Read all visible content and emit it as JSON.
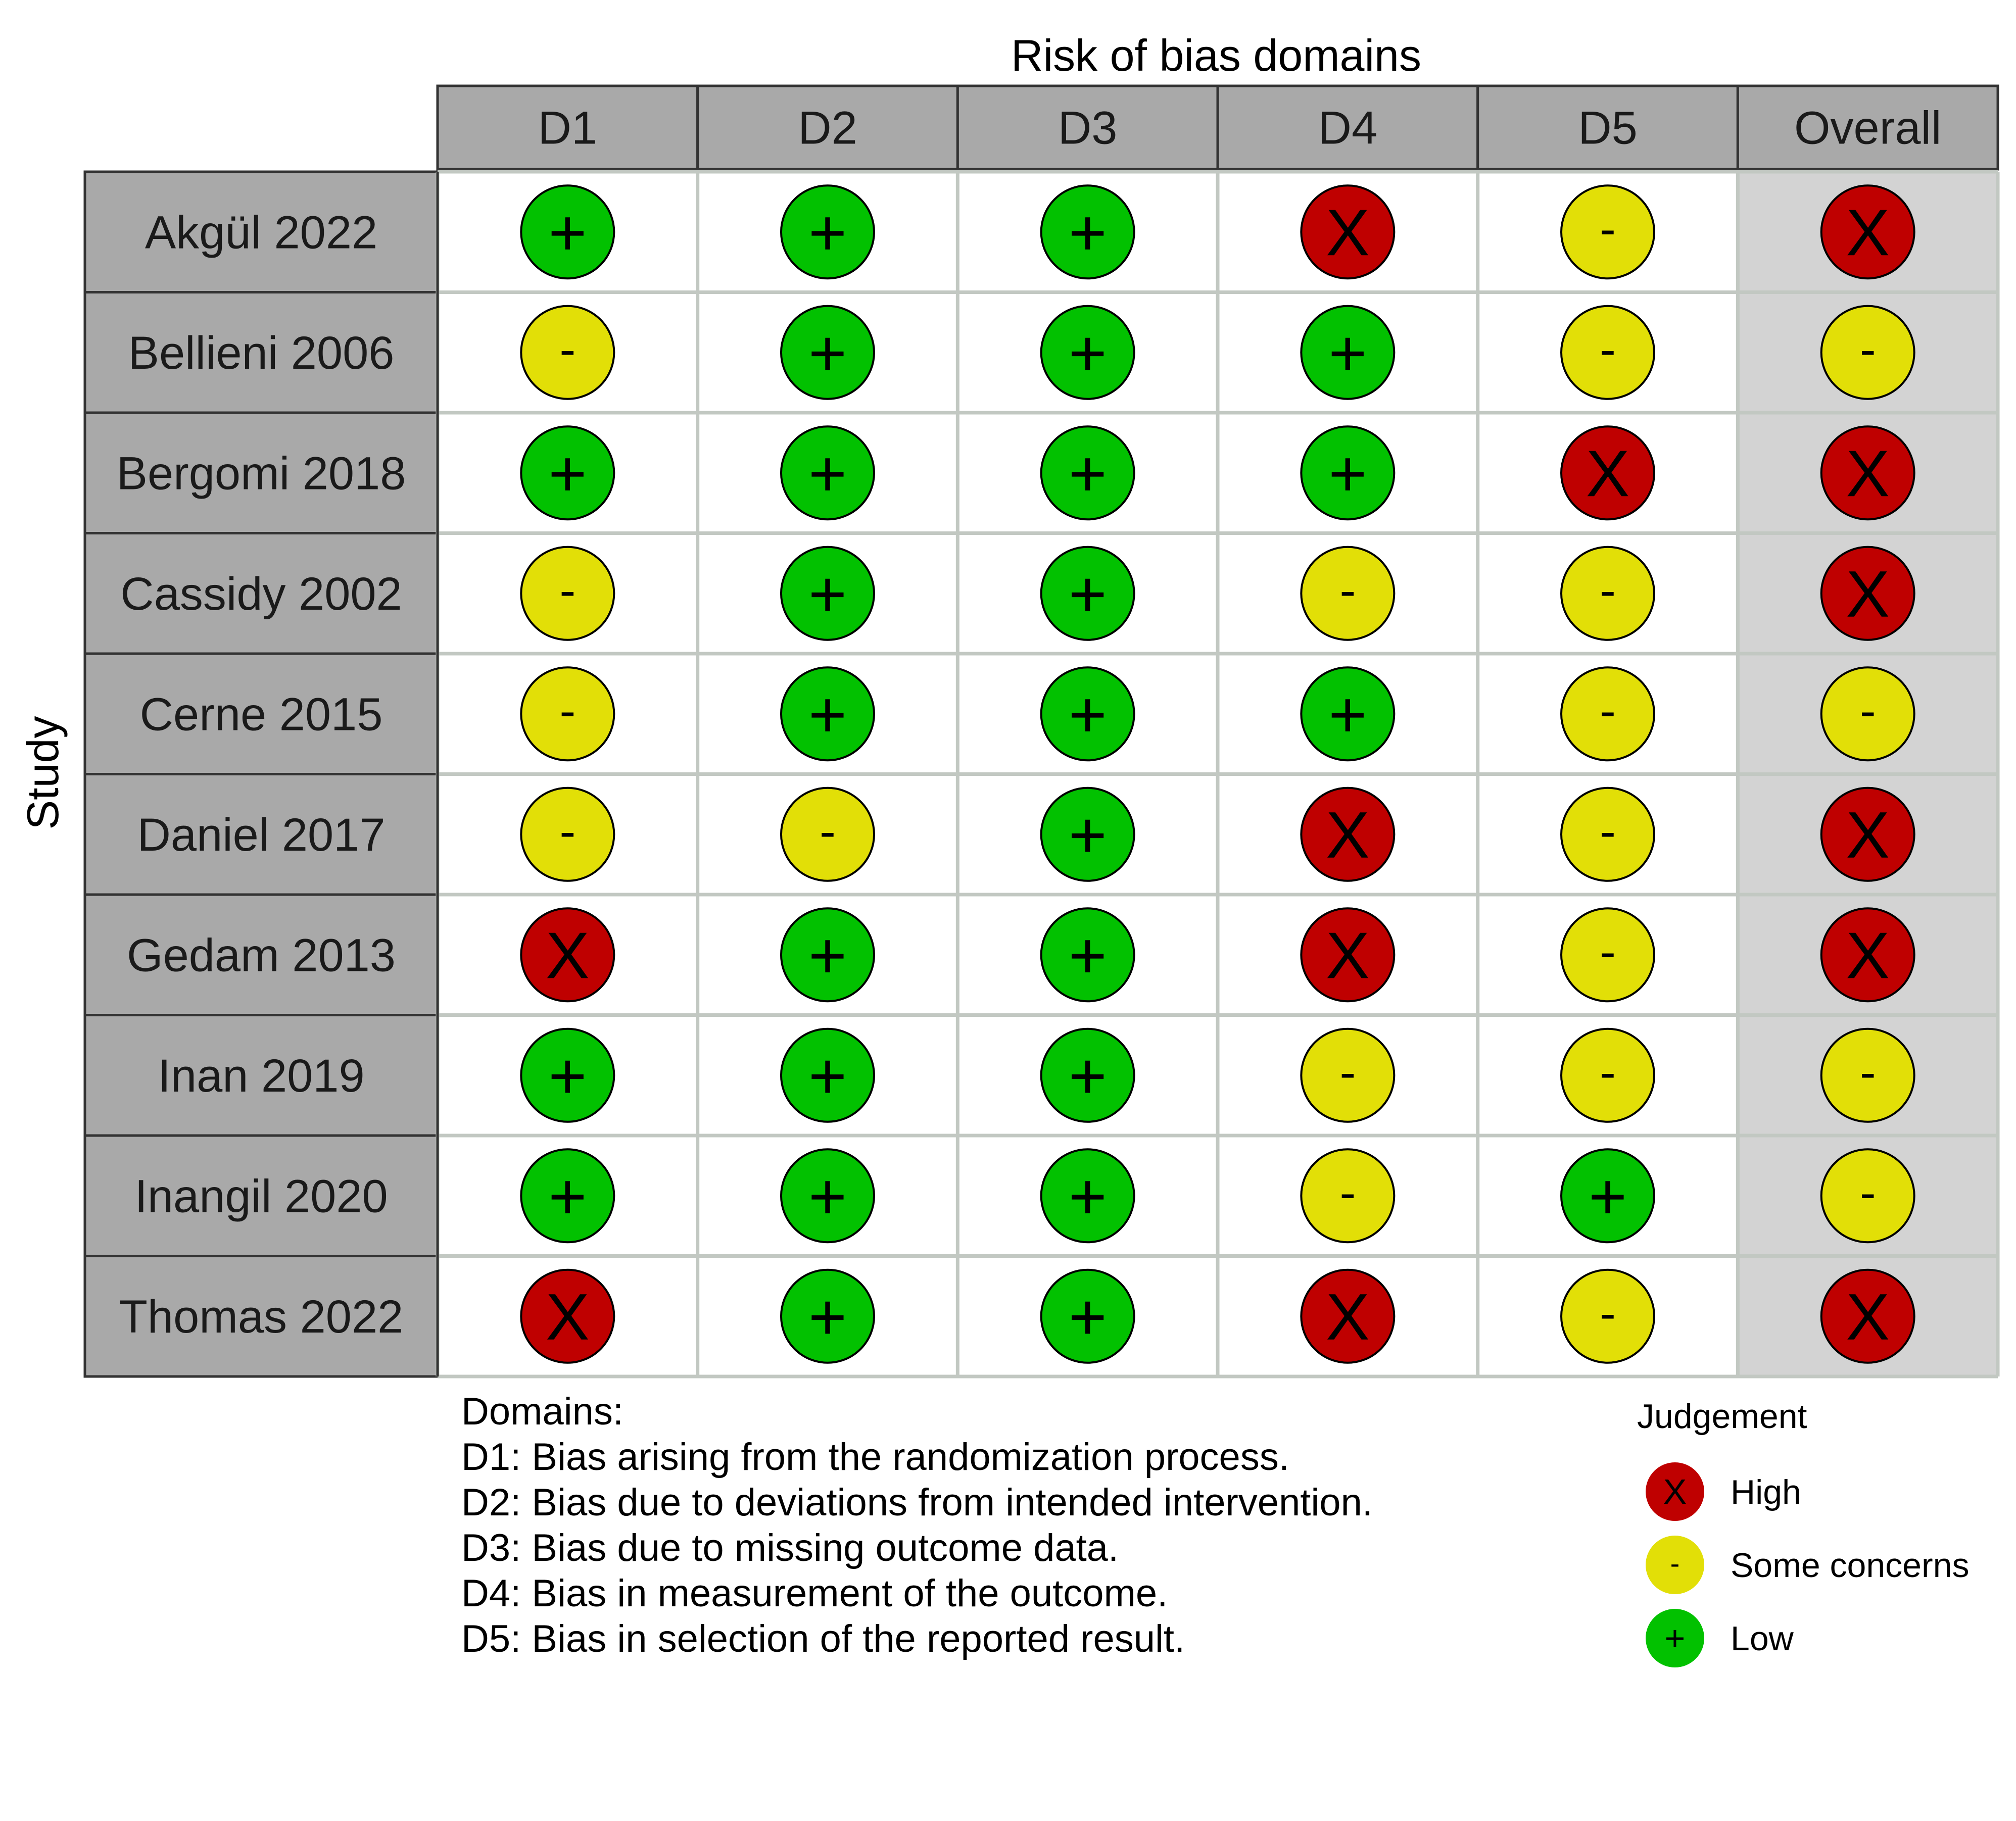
{
  "chart_data": {
    "type": "table",
    "title": "Risk of bias domains",
    "ylabel": "Study",
    "columns": [
      "D1",
      "D2",
      "D3",
      "D4",
      "D5",
      "Overall"
    ],
    "studies": [
      "Akgül 2022",
      "Bellieni 2006",
      "Bergomi 2018",
      "Cassidy 2002",
      "Cerne 2015",
      "Daniel 2017",
      "Gedam 2013",
      "Inan 2019",
      "Inangil 2020",
      "Thomas 2022"
    ],
    "judgements": [
      [
        "low",
        "low",
        "low",
        "high",
        "some",
        "high"
      ],
      [
        "some",
        "low",
        "low",
        "low",
        "some",
        "some"
      ],
      [
        "low",
        "low",
        "low",
        "low",
        "high",
        "high"
      ],
      [
        "some",
        "low",
        "low",
        "some",
        "some",
        "high"
      ],
      [
        "some",
        "low",
        "low",
        "low",
        "some",
        "some"
      ],
      [
        "some",
        "some",
        "low",
        "high",
        "some",
        "high"
      ],
      [
        "high",
        "low",
        "low",
        "high",
        "some",
        "high"
      ],
      [
        "low",
        "low",
        "low",
        "some",
        "some",
        "some"
      ],
      [
        "low",
        "low",
        "low",
        "some",
        "low",
        "some"
      ],
      [
        "high",
        "low",
        "low",
        "high",
        "some",
        "high"
      ]
    ],
    "levels": {
      "high": {
        "symbol": "X",
        "label": "High",
        "color": "#BF0000"
      },
      "some": {
        "symbol": "-",
        "label": "Some concerns",
        "color": "#E2DF07"
      },
      "low": {
        "symbol": "+",
        "label": "Low",
        "color": "#02C100"
      }
    },
    "legend_title": "Judgement",
    "legend_order": [
      "high",
      "some",
      "low"
    ],
    "legend_placement": "bottom-right",
    "domains_heading": "Domains:",
    "domain_descriptions": [
      "D1: Bias arising from the randomization process.",
      "D2: Bias due to deviations from intended intervention.",
      "D3: Bias due to missing outcome data.",
      "D4: Bias in measurement of the outcome.",
      "D5: Bias in selection of the reported result."
    ],
    "colors": {
      "header_fill": "#A9A9A9",
      "study_fill": "#A9A9A9",
      "overall_fill": "#D3D3D3",
      "cell_fill": "#FFFFFF",
      "grid": "#C2C8C2",
      "border": "#333333"
    }
  }
}
